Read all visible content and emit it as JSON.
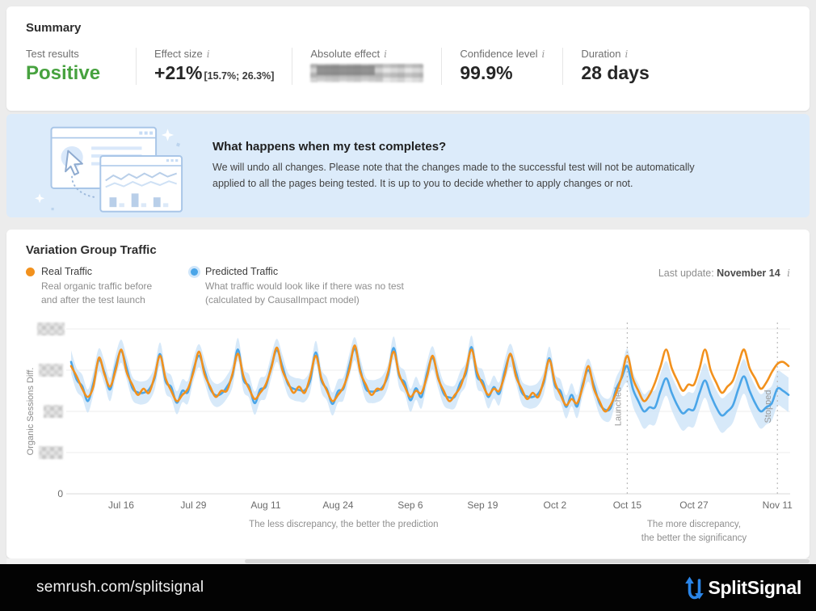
{
  "colors": {
    "positive": "#47a23f",
    "brand_blue": "#2a85e8",
    "banner_bg": "#dcebfa",
    "footer_bg": "#030303"
  },
  "icons": {
    "info": "i"
  },
  "summary": {
    "title": "Summary",
    "metrics": [
      {
        "label": "Test results",
        "value": "Positive",
        "info": false
      },
      {
        "label": "Effect size",
        "value": "+21%",
        "range": "[15.7%; 26.3%]",
        "info": true
      },
      {
        "label": "Absolute effect",
        "value_redacted": true,
        "info": true
      },
      {
        "label": "Confidence level",
        "value": "99.9%",
        "info": true
      },
      {
        "label": "Duration",
        "value": "28 days",
        "info": true
      }
    ]
  },
  "banner": {
    "title": "What happens when my test completes?",
    "body": "We will undo all changes. Please note that the changes made to the successful test will not be automatically applied to all the pages being tested. It is up to you to decide whether to apply changes or not."
  },
  "chart": {
    "title": "Variation Group Traffic",
    "legend": [
      {
        "name": "Real Traffic",
        "description": "Real organic traffic before and after the test launch",
        "color": "#f2911d"
      },
      {
        "name": "Predicted Traffic",
        "description": "What traffic would look like if there was no test (calculated by CausalImpact model)",
        "color": "#4aa5e8"
      }
    ],
    "last_update_label": "Last update:",
    "last_update_value": "November 14"
  },
  "chart_data": {
    "type": "line",
    "title": "Variation Group Traffic",
    "y_axis": {
      "label": "Organic Sessions Diff.",
      "zero_label": "0",
      "gridline_values": [
        0,
        1,
        2,
        3,
        4
      ],
      "redacted_ticks": [
        1,
        2,
        3,
        4
      ],
      "tick_labels_redacted": true
    },
    "x_ticks": [
      {
        "label": "Jul 16",
        "day": 9
      },
      {
        "label": "Jul 29",
        "day": 22
      },
      {
        "label": "Aug 11",
        "day": 35
      },
      {
        "label": "Aug 24",
        "day": 48
      },
      {
        "label": "Sep 6",
        "day": 61
      },
      {
        "label": "Sep 19",
        "day": 74
      },
      {
        "label": "Oct 2",
        "day": 87
      },
      {
        "label": "Oct 15",
        "day": 100
      },
      {
        "label": "Oct 27",
        "day": 112
      },
      {
        "label": "Nov 11",
        "day": 127
      }
    ],
    "markers": [
      {
        "label": "Launched",
        "day": 100
      },
      {
        "label": "Stopped",
        "day": 127
      }
    ],
    "annotations": [
      {
        "day": 49,
        "lines": [
          "The less discrepancy, the better the prediction"
        ]
      },
      {
        "day": 112,
        "lines": [
          "The more discrepancy,",
          "the better the significancy"
        ]
      }
    ],
    "colors": {
      "real": "#f2911d",
      "predicted": "#4aa5e8",
      "band": "#c9e2f7",
      "grid": "#ededed",
      "axis": "#d8d8d8",
      "marker": "#bbbbbb",
      "tick_text": "#6b6b6b",
      "muted_text": "#979797"
    },
    "series": [
      {
        "name": "Real Traffic",
        "color": "#f2911d",
        "values": [
          3.1,
          2.85,
          2.55,
          2.35,
          2.6,
          3.3,
          2.9,
          2.6,
          3.0,
          3.5,
          2.95,
          2.65,
          2.4,
          2.55,
          2.45,
          2.85,
          3.35,
          2.8,
          2.5,
          2.25,
          2.4,
          2.55,
          2.95,
          3.45,
          2.9,
          2.6,
          2.35,
          2.5,
          2.5,
          2.9,
          3.4,
          2.85,
          2.55,
          2.3,
          2.45,
          2.65,
          3.05,
          3.55,
          3.0,
          2.7,
          2.45,
          2.6,
          2.45,
          2.85,
          3.35,
          2.8,
          2.5,
          2.25,
          2.4,
          2.6,
          3.0,
          3.6,
          2.95,
          2.65,
          2.4,
          2.55,
          2.55,
          2.95,
          3.45,
          2.9,
          2.6,
          2.35,
          2.5,
          2.45,
          2.85,
          3.35,
          2.8,
          2.5,
          2.25,
          2.4,
          2.6,
          3.0,
          3.5,
          2.95,
          2.65,
          2.4,
          2.55,
          2.5,
          2.9,
          3.4,
          2.85,
          2.55,
          2.3,
          2.45,
          2.35,
          2.75,
          3.25,
          2.7,
          2.4,
          2.15,
          2.3,
          2.2,
          2.6,
          3.1,
          2.55,
          2.25,
          2.0,
          2.15,
          2.45,
          2.85,
          3.35,
          2.8,
          2.5,
          2.25,
          2.4,
          2.7,
          3.1,
          3.5,
          3.05,
          2.75,
          2.5,
          2.65,
          2.65,
          3.05,
          3.5,
          3.0,
          2.7,
          2.45,
          2.6,
          2.75,
          3.15,
          3.5,
          3.05,
          2.8,
          2.55,
          2.7,
          2.95,
          3.15,
          3.2,
          3.1
        ]
      },
      {
        "name": "Predicted Traffic",
        "color": "#4aa5e8",
        "band": {
          "pre_halfwidth": 0.28,
          "post_halfwidth": 0.42,
          "change_day": 100,
          "color": "#c9e2f7"
        },
        "values": [
          3.2,
          2.77,
          2.61,
          2.25,
          2.68,
          3.25,
          2.94,
          2.53,
          3.09,
          3.46,
          3.05,
          2.57,
          2.46,
          2.45,
          2.53,
          2.8,
          3.39,
          2.73,
          2.59,
          2.21,
          2.5,
          2.47,
          3.01,
          3.35,
          2.98,
          2.55,
          2.39,
          2.43,
          2.59,
          2.86,
          3.5,
          2.77,
          2.61,
          2.2,
          2.53,
          2.6,
          3.09,
          3.48,
          3.09,
          2.66,
          2.55,
          2.52,
          2.51,
          2.75,
          3.43,
          2.75,
          2.54,
          2.18,
          2.49,
          2.56,
          3.1,
          3.52,
          3.01,
          2.55,
          2.48,
          2.5,
          2.59,
          2.88,
          3.54,
          2.86,
          2.7,
          2.27,
          2.56,
          2.35,
          2.93,
          3.3,
          2.84,
          2.43,
          2.34,
          2.36,
          2.7,
          2.92,
          3.56,
          2.85,
          2.73,
          2.35,
          2.59,
          2.43,
          2.99,
          3.36,
          2.95,
          2.47,
          2.36,
          2.35,
          2.43,
          2.7,
          3.29,
          2.63,
          2.49,
          2.11,
          2.4,
          2.12,
          2.66,
          3.0,
          2.63,
          2.2,
          2.04,
          2.08,
          2.54,
          2.81,
          3.1,
          2.55,
          2.25,
          2.0,
          2.1,
          2.1,
          2.5,
          2.8,
          2.45,
          2.15,
          1.95,
          2.05,
          2.05,
          2.45,
          2.75,
          2.4,
          2.1,
          1.9,
          2.0,
          2.15,
          2.55,
          2.85,
          2.5,
          2.2,
          2.0,
          2.1,
          2.2,
          2.55,
          2.5,
          2.4
        ]
      }
    ]
  },
  "footer": {
    "url": "semrush.com/splitsignal",
    "brand": "SplitSignal"
  }
}
